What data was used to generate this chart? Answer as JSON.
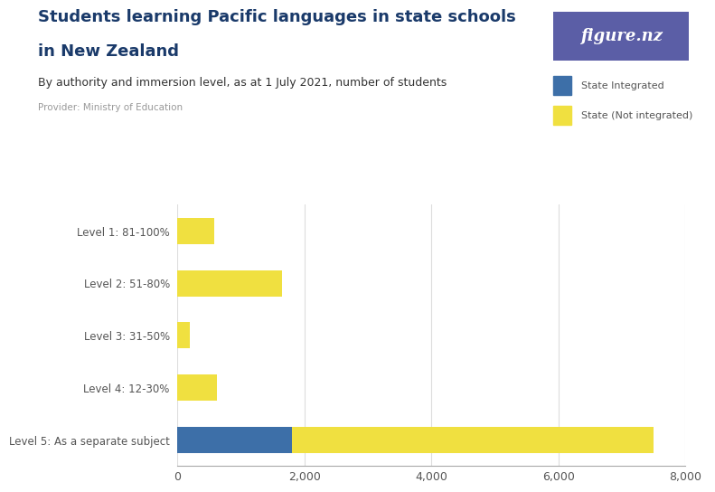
{
  "title_line1": "Students learning Pacific languages in state schools",
  "title_line2": "in New Zealand",
  "subtitle": "By authority and immersion level, as at 1 July 2021, number of students",
  "provider": "Provider: Ministry of Education",
  "categories": [
    "Level 5: As a separate subject",
    "Level 4: 12-30%",
    "Level 3: 31-50%",
    "Level 2: 51-80%",
    "Level 1: 81-100%"
  ],
  "state_integrated": [
    1800,
    0,
    0,
    0,
    0
  ],
  "state_not_integrated": [
    5700,
    620,
    200,
    1650,
    580
  ],
  "color_integrated": "#3d6fa8",
  "color_not_integrated": "#f0e040",
  "xlim": [
    0,
    8000
  ],
  "xticks": [
    0,
    2000,
    4000,
    6000,
    8000
  ],
  "xtick_labels": [
    "0",
    "2,000",
    "4,000",
    "6,000",
    "8,000"
  ],
  "legend_integrated": "State Integrated",
  "legend_not_integrated": "State (Not integrated)",
  "bg_color": "#ffffff",
  "logo_color": "#5b5ea6",
  "bar_height": 0.5,
  "grid_color": "#dddddd",
  "title_color": "#1a3a6a",
  "subtitle_color": "#333333",
  "provider_color": "#999999",
  "tick_label_color": "#555555",
  "ylabel_color": "#333333"
}
